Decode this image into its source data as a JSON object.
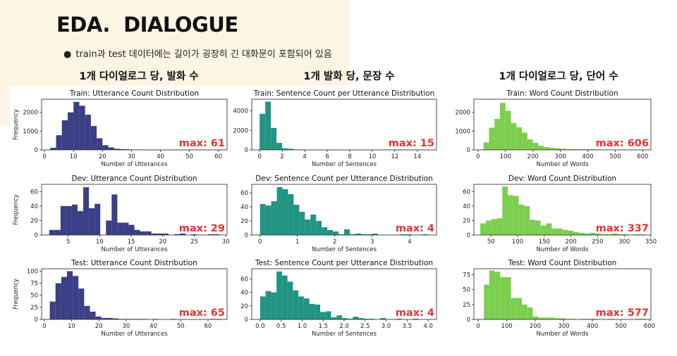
{
  "slide": {
    "title": "EDA.  DIALOGUE",
    "bullet": "train과 test 데이터에는 길이가 굉장히 긴 대화문이 포함되어 있음",
    "columns": [
      "1개 다이얼로그 당, 발화 수",
      "1개 발화 당, 문장 수",
      "1개 다이얼로그 당, 단어 수"
    ]
  },
  "colors": {
    "utterance": "#3b3f85",
    "sentence": "#229484",
    "word": "#7ccf4e",
    "max_label": "#e63232",
    "panel": "#fdf5e4"
  },
  "chart_data": [
    {
      "type": "bar",
      "title": "Train: Utterance Count Distribution",
      "xlabel": "Number of Utterances",
      "ylabel": "Frequency",
      "xlim": [
        -1,
        63
      ],
      "ylim": [
        0,
        2700
      ],
      "xticks": [
        0,
        10,
        20,
        30,
        40,
        50,
        60
      ],
      "yticks": [
        0,
        1000,
        2000
      ],
      "xtick_decimals": 0,
      "bin_start": 2,
      "bin_width": 2,
      "color": "utterance",
      "annotation": "max: 61",
      "values": [
        110,
        780,
        1580,
        2000,
        2560,
        2350,
        1870,
        1270,
        620,
        250,
        130,
        60,
        40,
        30,
        10,
        8,
        5,
        3,
        2,
        2,
        1,
        1,
        1,
        1,
        1,
        1,
        1,
        1,
        1,
        1
      ]
    },
    {
      "type": "bar",
      "title": "Train: Sentence Count per Utterance Distribution",
      "xlabel": "Number of Sentences",
      "ylabel": "",
      "xlim": [
        -0.7,
        15.7
      ],
      "ylim": [
        0,
        5200
      ],
      "xticks": [
        0,
        2,
        4,
        6,
        8,
        10,
        12,
        14
      ],
      "yticks": [
        0,
        2000,
        4000
      ],
      "xtick_decimals": 0,
      "bin_start": 0,
      "bin_width": 0.5,
      "color": "sentence",
      "annotation": "max: 15",
      "values": [
        3700,
        4950,
        2250,
        720,
        160,
        110,
        40,
        20,
        10,
        5,
        4,
        3,
        2,
        2,
        1,
        1,
        1,
        1,
        1,
        1,
        1,
        1,
        1,
        1,
        1,
        1,
        1,
        1,
        1,
        1
      ]
    },
    {
      "type": "bar",
      "title": "Train: Word Count Distribution",
      "xlabel": "Number of Words",
      "ylabel": "",
      "xlim": [
        -15,
        630
      ],
      "ylim": [
        0,
        2700
      ],
      "xticks": [
        0,
        100,
        200,
        300,
        400,
        500,
        600
      ],
      "yticks": [
        0,
        1000,
        2000
      ],
      "xtick_decimals": 0,
      "bin_start": 20,
      "bin_width": 20,
      "color": "word",
      "annotation": "max: 606",
      "values": [
        400,
        1180,
        1650,
        2500,
        2080,
        1430,
        1200,
        920,
        560,
        370,
        220,
        150,
        110,
        85,
        60,
        45,
        40,
        35,
        30,
        40,
        25,
        15,
        10,
        8,
        6,
        5,
        4,
        4,
        3,
        2
      ]
    },
    {
      "type": "bar",
      "title": "Dev: Utterance Count Distribution",
      "xlabel": "Number of Utterances",
      "ylabel": "Frequency",
      "xlim": [
        0.8,
        30.2
      ],
      "ylim": [
        0,
        70
      ],
      "xticks": [
        5,
        10,
        15,
        20,
        25,
        30
      ],
      "yticks": [
        0,
        20,
        40,
        60
      ],
      "xtick_decimals": 0,
      "bin_start": 2,
      "bin_width": 0.9,
      "color": "utterance",
      "annotation": "max: 29",
      "values": [
        7,
        7,
        40,
        40,
        42,
        33,
        66,
        37,
        43,
        0,
        20,
        56,
        17,
        17,
        14,
        7,
        5,
        5,
        2,
        2,
        2,
        0,
        1,
        2,
        0,
        1,
        0,
        0,
        1,
        1
      ]
    },
    {
      "type": "bar",
      "title": "Dev: Sentence Count per Utterance Distribution",
      "xlabel": "Number of Sentences",
      "ylabel": "",
      "xlim": [
        -0.22,
        4.72
      ],
      "ylim": [
        0,
        72
      ],
      "xticks": [
        0,
        1,
        2,
        3,
        4
      ],
      "yticks": [
        0,
        20,
        40,
        60
      ],
      "xtick_decimals": 0,
      "bin_start": 0,
      "bin_width": 0.15,
      "color": "sentence",
      "annotation": "max: 4",
      "values": [
        44,
        42,
        48,
        68,
        65,
        58,
        43,
        33,
        22,
        29,
        20,
        11,
        7,
        5,
        1,
        8,
        1,
        2,
        1,
        1,
        2,
        0,
        0,
        0,
        0,
        1,
        1,
        0,
        0,
        1
      ]
    },
    {
      "type": "bar",
      "title": "Dev: Word Count Distribution",
      "xlabel": "Number of Words",
      "ylabel": "",
      "xlim": [
        18,
        350
      ],
      "ylim": [
        0,
        70
      ],
      "xticks": [
        50,
        100,
        150,
        200,
        250,
        300,
        350
      ],
      "yticks": [
        0,
        20,
        40,
        60
      ],
      "xtick_decimals": 0,
      "bin_start": 30,
      "bin_width": 10.3,
      "color": "word",
      "annotation": "max: 337",
      "values": [
        16,
        20,
        22,
        23,
        67,
        55,
        54,
        42,
        40,
        21,
        20,
        13,
        16,
        9,
        9,
        7,
        6,
        4,
        3,
        2,
        3,
        2,
        1,
        1,
        2,
        1,
        1,
        0,
        1,
        1
      ]
    },
    {
      "type": "bar",
      "title": "Test: Utterance Count Distribution",
      "xlabel": "Number of Utterances",
      "ylabel": "Frequency",
      "xlim": [
        -1,
        67
      ],
      "ylim": [
        0,
        105
      ],
      "xticks": [
        0,
        10,
        20,
        30,
        40,
        50,
        60
      ],
      "yticks": [
        0,
        25,
        50,
        75,
        100
      ],
      "xtick_decimals": 0,
      "bin_start": 2,
      "bin_width": 2.1,
      "color": "utterance",
      "annotation": "max: 65",
      "values": [
        37,
        75,
        88,
        100,
        90,
        64,
        28,
        16,
        6,
        3,
        3,
        2,
        1,
        1,
        1,
        1,
        1,
        0,
        1,
        0,
        0,
        1,
        0,
        0,
        0,
        0,
        0,
        0,
        1,
        1
      ]
    },
    {
      "type": "bar",
      "title": "Test: Sentence Count per Utterance Distribution",
      "xlabel": "Number of Sentences",
      "ylabel": "",
      "xlim": [
        -0.2,
        4.2
      ],
      "ylim": [
        0,
        75
      ],
      "xticks": [
        0,
        0.5,
        1,
        1.5,
        2,
        2.5,
        3,
        3.5,
        4
      ],
      "yticks": [
        0,
        20,
        40,
        60
      ],
      "xtick_decimals": 1,
      "bin_start": 0,
      "bin_width": 0.13,
      "color": "sentence",
      "annotation": "max: 4",
      "values": [
        34,
        42,
        40,
        71,
        65,
        56,
        43,
        34,
        31,
        23,
        22,
        11,
        12,
        3,
        6,
        2,
        1,
        4,
        2,
        1,
        1,
        0,
        2,
        0,
        0,
        1,
        0,
        0,
        1,
        0
      ]
    },
    {
      "type": "bar",
      "title": "Test: Word Count Distribution",
      "xlabel": "Number of Words",
      "ylabel": "",
      "xlim": [
        -15,
        605
      ],
      "ylim": [
        0,
        85
      ],
      "xticks": [
        0,
        100,
        200,
        300,
        400,
        500,
        600
      ],
      "yticks": [
        0,
        25,
        50,
        75
      ],
      "xtick_decimals": 0,
      "bin_start": 20,
      "bin_width": 19,
      "color": "word",
      "annotation": "max: 577",
      "values": [
        58,
        82,
        80,
        71,
        71,
        36,
        36,
        25,
        20,
        5,
        3,
        3,
        3,
        2,
        2,
        1,
        1,
        0,
        1,
        1,
        1,
        0,
        0,
        1,
        0,
        0,
        0,
        0,
        1,
        1
      ]
    }
  ]
}
